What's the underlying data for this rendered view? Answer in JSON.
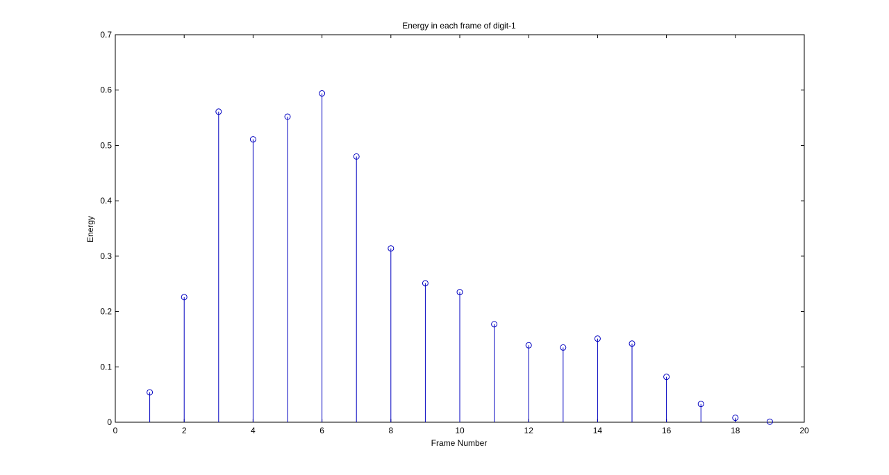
{
  "chart_data": {
    "type": "scatter",
    "style": "stem",
    "title": "Energy in each frame of digit-1",
    "xlabel": "Frame Number",
    "ylabel": "Energy",
    "xlim": [
      0,
      20
    ],
    "ylim": [
      0,
      0.7
    ],
    "xticks": [
      0,
      2,
      4,
      6,
      8,
      10,
      12,
      14,
      16,
      18,
      20
    ],
    "yticks": [
      0,
      0.1,
      0.2,
      0.3,
      0.4,
      0.5,
      0.6,
      0.7
    ],
    "xtick_labels": [
      "0",
      "2",
      "4",
      "6",
      "8",
      "10",
      "12",
      "14",
      "16",
      "18",
      "20"
    ],
    "ytick_labels": [
      "0",
      "0.1",
      "0.2",
      "0.3",
      "0.4",
      "0.5",
      "0.6",
      "0.7"
    ],
    "grid": false,
    "legend": false,
    "color": "#0000c0",
    "x": [
      1,
      2,
      3,
      4,
      5,
      6,
      7,
      8,
      9,
      10,
      11,
      12,
      13,
      14,
      15,
      16,
      17,
      18,
      19
    ],
    "y": [
      0.054,
      0.226,
      0.561,
      0.511,
      0.552,
      0.594,
      0.48,
      0.314,
      0.251,
      0.235,
      0.177,
      0.139,
      0.135,
      0.151,
      0.142,
      0.082,
      0.033,
      0.008,
      0.001
    ]
  }
}
